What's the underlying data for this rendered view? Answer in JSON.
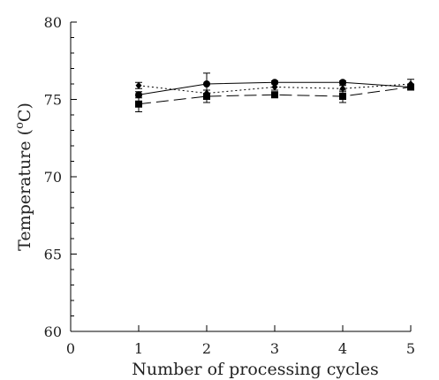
{
  "chart_data": {
    "type": "line",
    "xlabel": "Number of processing cycles",
    "ylabel": "Temperature (°C)",
    "ylabel_base": "Temperature (",
    "ylabel_sup": "o",
    "ylabel_tail": "C)",
    "xlim": [
      0,
      5
    ],
    "ylim": [
      60,
      80
    ],
    "x_ticks": [
      0,
      1,
      2,
      3,
      4,
      5
    ],
    "y_ticks": [
      60,
      65,
      70,
      75,
      80
    ],
    "x": [
      1,
      2,
      3,
      4,
      5
    ],
    "series": [
      {
        "values": [
          75.3,
          76.0,
          76.1,
          76.1,
          75.8
        ],
        "errors": [
          0.2,
          0.7,
          0.1,
          0.1,
          0.2
        ],
        "marker": "circle",
        "line_style": "solid"
      },
      {
        "values": [
          74.7,
          75.2,
          75.3,
          75.2,
          75.8
        ],
        "errors": [
          0.5,
          0.4,
          0.1,
          0.4,
          0.2
        ],
        "marker": "square",
        "line_style": "dashed"
      },
      {
        "values": [
          75.9,
          75.4,
          75.8,
          75.7,
          76.0
        ],
        "errors": [
          0.2,
          0.2,
          0.2,
          0.2,
          0.3
        ],
        "marker": "diamond",
        "line_style": "dotted"
      }
    ]
  }
}
